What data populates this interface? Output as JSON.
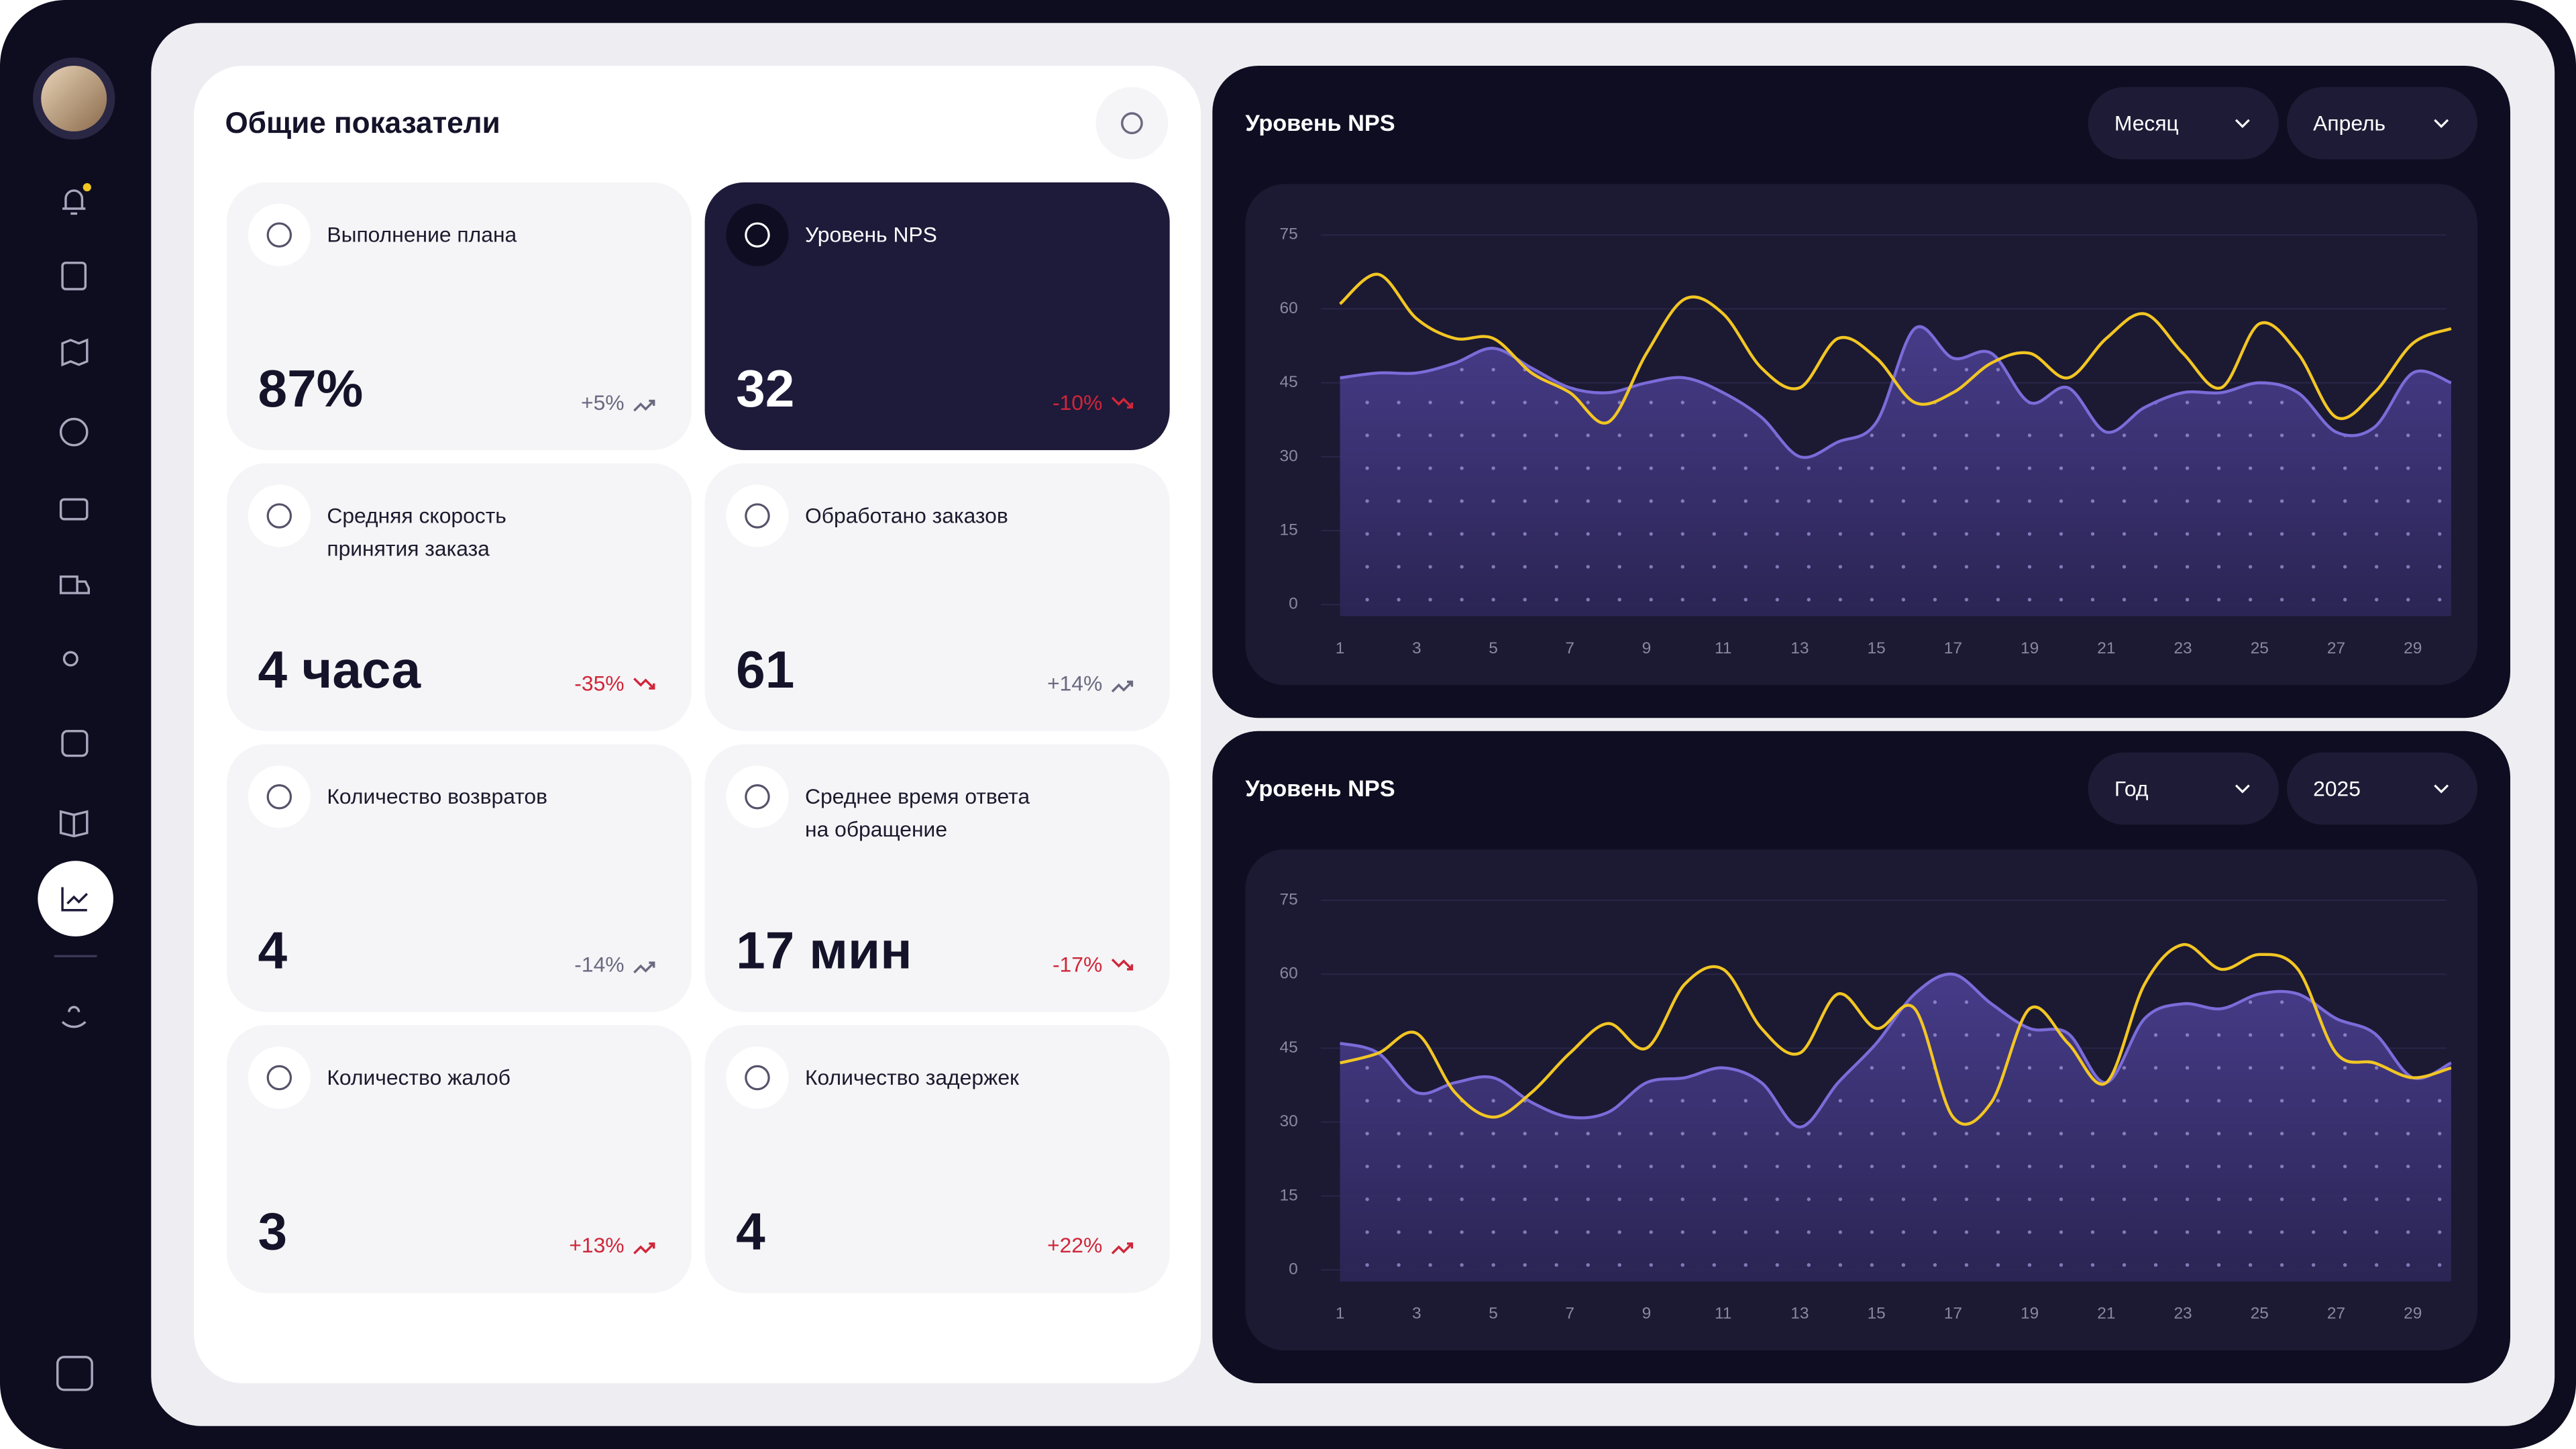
{
  "panel": {
    "title": "Общие показатели",
    "cards": [
      {
        "label_lines": [
          "Выполнение плана"
        ],
        "value": "87%",
        "change": "+5%",
        "trend": "up",
        "highlight": false,
        "active": false
      },
      {
        "label_lines": [
          "Уровень NPS"
        ],
        "value": "32",
        "change": "-10%",
        "trend": "down",
        "highlight": true,
        "active": true
      },
      {
        "label_lines": [
          "Средняя скорость",
          "принятия заказа"
        ],
        "value": "4 часа",
        "change": "-35%",
        "trend": "down",
        "highlight": true,
        "active": false
      },
      {
        "label_lines": [
          "Обработано заказов"
        ],
        "value": "61",
        "change": "+14%",
        "trend": "up",
        "highlight": false,
        "active": false
      },
      {
        "label_lines": [
          "Количество возвратов"
        ],
        "value": "4",
        "change": "-14%",
        "trend": "up",
        "highlight": false,
        "active": false
      },
      {
        "label_lines": [
          "Среднее время ответа",
          "на обращение"
        ],
        "value": "17 мин",
        "change": "-17%",
        "trend": "down",
        "highlight": true,
        "active": false
      },
      {
        "label_lines": [
          "Количество жалоб"
        ],
        "value": "3",
        "change": "+13%",
        "trend": "up",
        "highlight": true,
        "active": false
      },
      {
        "label_lines": [
          "Количество задержек"
        ],
        "value": "4",
        "change": "+22%",
        "trend": "up",
        "highlight": true,
        "active": false
      }
    ]
  },
  "chart_data": [
    {
      "type": "line",
      "title": "Уровень NPS",
      "filters": [
        "Месяц",
        "Апрель"
      ],
      "x": [
        1,
        2,
        3,
        4,
        5,
        6,
        7,
        8,
        9,
        10,
        11,
        12,
        13,
        14,
        15,
        16,
        17,
        18,
        19,
        20,
        21,
        22,
        23,
        24,
        25,
        26,
        27,
        28,
        29,
        30
      ],
      "xlim": [
        0.5,
        30
      ],
      "xticks": [
        1,
        3,
        5,
        7,
        9,
        11,
        13,
        15,
        17,
        19,
        21,
        23,
        25,
        27,
        29
      ],
      "ylim": [
        0,
        75
      ],
      "yticks": [
        0,
        15,
        30,
        45,
        60,
        75
      ],
      "grid": true,
      "series": [
        {
          "color": "#7a6cd8",
          "area": true,
          "values": [
            46,
            47,
            47,
            49,
            52,
            48,
            44,
            43,
            45,
            46,
            43,
            38,
            30,
            33,
            37,
            56,
            50,
            51,
            41,
            44,
            35,
            40,
            43,
            43,
            45,
            43,
            35,
            36,
            47,
            45
          ]
        },
        {
          "color": "#f2c623",
          "area": false,
          "values": [
            61,
            67,
            58,
            54,
            54,
            47,
            43,
            37,
            51,
            62,
            59,
            48,
            44,
            54,
            50,
            41,
            43,
            49,
            51,
            46,
            54,
            59,
            51,
            44,
            57,
            51,
            38,
            43,
            53,
            56
          ]
        }
      ]
    },
    {
      "type": "line",
      "title": "Уровень NPS",
      "filters": [
        "Год",
        "2025"
      ],
      "x": [
        1,
        2,
        3,
        4,
        5,
        6,
        7,
        8,
        9,
        10,
        11,
        12,
        13,
        14,
        15,
        16,
        17,
        18,
        19,
        20,
        21,
        22,
        23,
        24,
        25,
        26,
        27,
        28,
        29,
        30
      ],
      "xlim": [
        0.5,
        30
      ],
      "xticks": [
        1,
        3,
        5,
        7,
        9,
        11,
        13,
        15,
        17,
        19,
        21,
        23,
        25,
        27,
        29
      ],
      "ylim": [
        0,
        75
      ],
      "yticks": [
        0,
        15,
        30,
        45,
        60,
        75
      ],
      "grid": true,
      "series": [
        {
          "color": "#7a6cd8",
          "area": true,
          "values": [
            46,
            44,
            36,
            38,
            39,
            34,
            31,
            32,
            38,
            39,
            41,
            38,
            29,
            38,
            46,
            56,
            60,
            54,
            49,
            48,
            38,
            51,
            54,
            53,
            56,
            56,
            51,
            48,
            39,
            42
          ]
        },
        {
          "color": "#f2c623",
          "area": false,
          "values": [
            42,
            44,
            48,
            36,
            31,
            36,
            44,
            50,
            45,
            58,
            61,
            49,
            44,
            56,
            49,
            53,
            31,
            34,
            53,
            46,
            38,
            58,
            66,
            61,
            64,
            61,
            44,
            42,
            39,
            41
          ]
        }
      ]
    }
  ]
}
